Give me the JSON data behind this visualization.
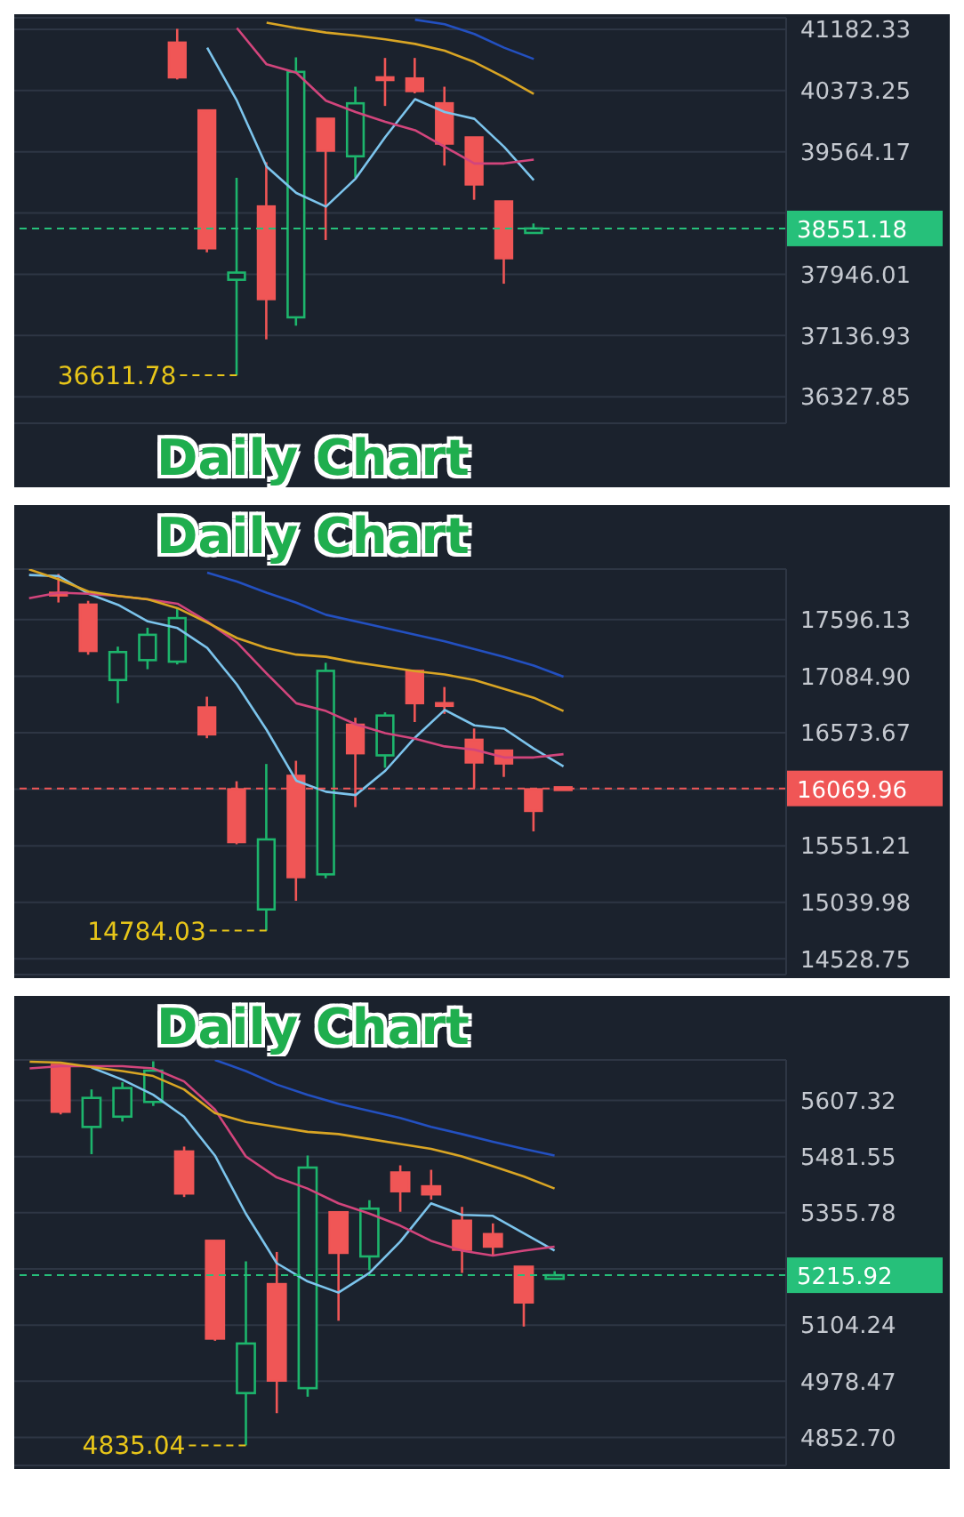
{
  "chart_data": [
    {
      "type": "candlestick",
      "title": "Daily Chart",
      "categories": [
        null,
        null,
        null,
        null,
        null,
        null,
        null,
        null,
        null,
        null,
        null,
        null,
        null,
        null,
        null,
        null,
        null,
        null,
        null,
        null,
        null,
        null,
        null,
        null,
        null,
        null
      ],
      "ohlc": [
        null,
        null,
        null,
        null,
        null,
        [
          41007,
          41189,
          40520,
          40548
        ],
        [
          40111,
          40111,
          38236,
          38289
        ],
        [
          37873,
          39221,
          36611.78,
          37968
        ],
        [
          38842,
          39426,
          37086,
          37618
        ],
        [
          37377,
          40811,
          37268,
          40620
        ],
        [
          40001,
          40001,
          38398,
          39579
        ],
        [
          39505,
          40424,
          39221,
          40205
        ],
        [
          40548,
          40804,
          40170,
          40537
        ],
        [
          40533,
          40804,
          40336,
          40367
        ],
        [
          40205,
          40424,
          39382,
          39673
        ],
        [
          39754,
          39754,
          38930,
          39133
        ],
        [
          38908,
          38908,
          37821,
          38158
        ],
        [
          38492,
          38617,
          38492,
          38551.18
        ],
        null,
        null,
        null,
        null,
        null,
        null,
        null,
        null
      ],
      "colors": [
        null,
        null,
        null,
        null,
        null,
        "#f05656",
        "#f05656",
        "#1db56c",
        "#f05656",
        "#1db56c",
        "#f05656",
        "#1db56c",
        "#f05656",
        "#f05656",
        "#f05656",
        "#f05656",
        "#f05656",
        "#1db56c",
        null,
        null,
        null,
        null,
        null,
        null,
        null,
        null
      ],
      "series": [
        {
          "type": "line",
          "color": "#7cc4ec",
          "values": [
            null,
            null,
            null,
            null,
            null,
            null,
            40940,
            40240,
            39370,
            39020,
            38840,
            39210,
            39760,
            40260,
            40090,
            40000,
            39630,
            39190,
            null,
            null,
            null,
            null,
            null,
            null,
            null,
            null
          ]
        },
        {
          "type": "line",
          "color": "#d2457c",
          "values": [
            null,
            null,
            null,
            null,
            null,
            null,
            null,
            41200,
            40720,
            40610,
            40240,
            40090,
            39960,
            39850,
            39630,
            39410,
            39410,
            39460,
            null,
            null,
            null,
            null,
            null,
            null,
            null,
            null
          ]
        },
        {
          "type": "line",
          "color": "#d9a524",
          "values": [
            null,
            null,
            null,
            null,
            null,
            null,
            null,
            null,
            41270,
            41200,
            41140,
            41100,
            41050,
            40990,
            40900,
            40750,
            40550,
            40330,
            null,
            null,
            null,
            null,
            null,
            null,
            null,
            null
          ]
        },
        {
          "type": "line",
          "color": "#2350c0",
          "values": [
            null,
            null,
            null,
            null,
            null,
            null,
            null,
            null,
            null,
            null,
            null,
            null,
            null,
            41310,
            41250,
            41120,
            40940,
            40790,
            null,
            null,
            null,
            null,
            null,
            null,
            null,
            null
          ]
        }
      ],
      "ylim": [
        35977,
        41335
      ],
      "yticks": [
        36327.85,
        37136.93,
        37946.01,
        {
          "value": 38755.09,
          "label": null
        },
        39564.17,
        40373.25,
        41182.33
      ],
      "grid": "y",
      "tick_labels": "y",
      "ref_lines": [
        {
          "axis": "y",
          "value": 38551.18,
          "label": "38551.18",
          "color": "#26c07a",
          "line_style": "dashed"
        }
      ],
      "annotations": [
        "36611.78"
      ]
    },
    {
      "type": "candlestick",
      "title": "Daily Chart",
      "categories": [
        null,
        null,
        null,
        null,
        null,
        null,
        null,
        null,
        null,
        null,
        null,
        null,
        null,
        null,
        null,
        null,
        null,
        null,
        null,
        null,
        null,
        null,
        null,
        null,
        null,
        null
      ],
      "ohlc": [
        null,
        [
          17839,
          18009,
          17751,
          17815
        ],
        [
          17732,
          17766,
          17279,
          17313
        ],
        [
          17050,
          17352,
          16841,
          17303
        ],
        [
          17230,
          17523,
          17148,
          17459
        ],
        [
          17216,
          17703,
          17191,
          17610
        ],
        [
          16802,
          16899,
          16524,
          16559
        ],
        [
          16062,
          16135,
          15565,
          15585
        ],
        [
          14976,
          16291,
          14784.03,
          15609
        ],
        [
          16184,
          16320,
          15054,
          15268
        ],
        [
          15293,
          17206,
          15258,
          17133
        ],
        [
          16646,
          16709,
          15901,
          16388
        ],
        [
          16369,
          16758,
          16257,
          16729
        ],
        [
          17133,
          17133,
          16670,
          16841
        ],
        [
          16841,
          16987,
          16744,
          16817
        ],
        [
          16510,
          16612,
          16072,
          16305
        ],
        [
          16412,
          16412,
          16174,
          16296
        ],
        [
          16062,
          16062,
          15682,
          15867
        ],
        [
          16080,
          16080,
          16069.96,
          16069.96
        ],
        null,
        null,
        null,
        null,
        null,
        null,
        null
      ],
      "colors": [
        null,
        "#f05656",
        "#f05656",
        "#1db56c",
        "#1db56c",
        "#1db56c",
        "#f05656",
        "#f05656",
        "#1db56c",
        "#f05656",
        "#1db56c",
        "#f05656",
        "#1db56c",
        "#f05656",
        "#f05656",
        "#f05656",
        "#f05656",
        "#f05656",
        "#f05656",
        null,
        null,
        null,
        null,
        null,
        null,
        null
      ],
      "series": [
        {
          "type": "line",
          "color": "#7cc4ec",
          "values": [
            18000,
            17990,
            17830,
            17730,
            17580,
            17520,
            17340,
            17010,
            16600,
            16140,
            16040,
            16010,
            16230,
            16530,
            16780,
            16640,
            16610,
            16430,
            16270,
            null,
            null,
            null,
            null,
            null,
            null,
            null
          ]
        },
        {
          "type": "line",
          "color": "#d2457c",
          "values": [
            17790,
            17840,
            17830,
            17810,
            17780,
            17740,
            17580,
            17390,
            17110,
            16840,
            16770,
            16650,
            16570,
            16520,
            16450,
            16420,
            16350,
            16350,
            16380,
            null,
            null,
            null,
            null,
            null,
            null,
            null
          ]
        },
        {
          "type": "line",
          "color": "#d9a524",
          "values": [
            18050,
            17960,
            17850,
            17810,
            17780,
            17700,
            17570,
            17430,
            17340,
            17280,
            17260,
            17210,
            17170,
            17130,
            17100,
            17050,
            16970,
            16890,
            16770,
            null,
            null,
            null,
            null,
            null,
            null,
            null
          ]
        },
        {
          "type": "line",
          "color": "#2350c0",
          "values": [
            null,
            null,
            null,
            null,
            null,
            null,
            18020,
            17940,
            17840,
            17750,
            17640,
            17580,
            17520,
            17460,
            17400,
            17330,
            17260,
            17180,
            17080,
            null,
            null,
            null,
            null,
            null,
            null,
            null
          ]
        }
      ],
      "ylim": [
        14387,
        18053
      ],
      "yticks": [
        14528.75,
        15039.98,
        15551.21,
        {
          "value": 16062.44,
          "label": null
        },
        16573.67,
        {
          "value": 17084.9,
          "label": "17084.90"
        },
        17596.13
      ],
      "grid": "y",
      "tick_labels": "y",
      "ref_lines": [
        {
          "axis": "y",
          "value": 16069.96,
          "label": "16069.96",
          "color": "#f05656",
          "line_style": "dashed"
        }
      ],
      "annotations": [
        "14784.03"
      ]
    },
    {
      "type": "candlestick",
      "title": "Daily Chart",
      "categories": [
        null,
        null,
        null,
        null,
        null,
        null,
        null,
        null,
        null,
        null,
        null,
        null,
        null,
        null,
        null,
        null,
        null,
        null,
        null,
        null,
        null,
        null,
        null,
        null,
        null
      ],
      "ohlc": [
        null,
        [
          5687,
          5687,
          5576,
          5582
        ],
        [
          5548,
          5632,
          5487,
          5613
        ],
        [
          5571,
          5648,
          5560,
          5635
        ],
        [
          5604,
          5695,
          5595,
          5674
        ],
        [
          5493,
          5504,
          5391,
          5399
        ],
        [
          5293,
          5293,
          5069,
          5074
        ],
        [
          4952,
          5247,
          4835.04,
          5063
        ],
        [
          5196,
          5268,
          4907,
          4980
        ],
        [
          4963,
          5484,
          4944,
          5457
        ],
        [
          5357,
          5357,
          5114,
          5266
        ],
        [
          5258,
          5384,
          5227,
          5365
        ],
        [
          5446,
          5462,
          5358,
          5404
        ],
        [
          5415,
          5452,
          5385,
          5397
        ],
        [
          5338,
          5369,
          5221,
          5273
        ],
        [
          5308,
          5332,
          5258,
          5280
        ],
        [
          5235,
          5235,
          5101,
          5155
        ],
        [
          5208,
          5225,
          5208,
          5215.92
        ],
        null,
        null,
        null,
        null,
        null,
        null,
        null
      ],
      "colors": [
        null,
        "#f05656",
        "#1db56c",
        "#1db56c",
        "#1db56c",
        "#f05656",
        "#f05656",
        "#1db56c",
        "#f05656",
        "#1db56c",
        "#f05656",
        "#1db56c",
        "#f05656",
        "#f05656",
        "#f05656",
        "#f05656",
        "#f05656",
        "#1db56c",
        null,
        null,
        null,
        null,
        null,
        null,
        null
      ],
      "series": [
        {
          "type": "line",
          "color": "#7cc4ec",
          "values": [
            null,
            null,
            5681,
            5654,
            5620,
            5571,
            5484,
            5354,
            5243,
            5202,
            5177,
            5221,
            5291,
            5377,
            5351,
            5349,
            5310,
            5271,
            null,
            null,
            null,
            null,
            null,
            null,
            null
          ]
        },
        {
          "type": "line",
          "color": "#d2457c",
          "values": [
            5679,
            5684,
            5684,
            5684,
            5679,
            5650,
            5587,
            5482,
            5435,
            5410,
            5377,
            5354,
            5327,
            5293,
            5271,
            5260,
            5271,
            5280,
            null,
            null,
            null,
            null,
            null,
            null,
            null
          ]
        },
        {
          "type": "line",
          "color": "#d9a524",
          "values": [
            5694,
            5692,
            5682,
            5673,
            5662,
            5632,
            5579,
            5559,
            5548,
            5537,
            5532,
            5521,
            5510,
            5499,
            5482,
            5460,
            5437,
            5410,
            null,
            null,
            null,
            null,
            null,
            null,
            null
          ]
        },
        {
          "type": "line",
          "color": "#2350c0",
          "values": [
            null,
            null,
            null,
            null,
            null,
            null,
            5698,
            5673,
            5643,
            5620,
            5600,
            5584,
            5568,
            5548,
            5532,
            5515,
            5499,
            5484,
            null,
            null,
            null,
            null,
            null,
            null,
            null
          ]
        }
      ],
      "ylim": [
        4790,
        5698
      ],
      "yticks": [
        {
          "value": 4852.7,
          "label": "4852.70"
        },
        4978.47,
        5104.24,
        {
          "value": 5230.01,
          "label": null
        },
        5355.78,
        5481.55,
        5607.32
      ],
      "grid": "y",
      "tick_labels": "y",
      "ref_lines": [
        {
          "axis": "y",
          "value": 5215.92,
          "label": "5215.92",
          "color": "#26c07a",
          "line_style": "dashed"
        }
      ],
      "annotations": [
        "4835.04"
      ]
    }
  ]
}
